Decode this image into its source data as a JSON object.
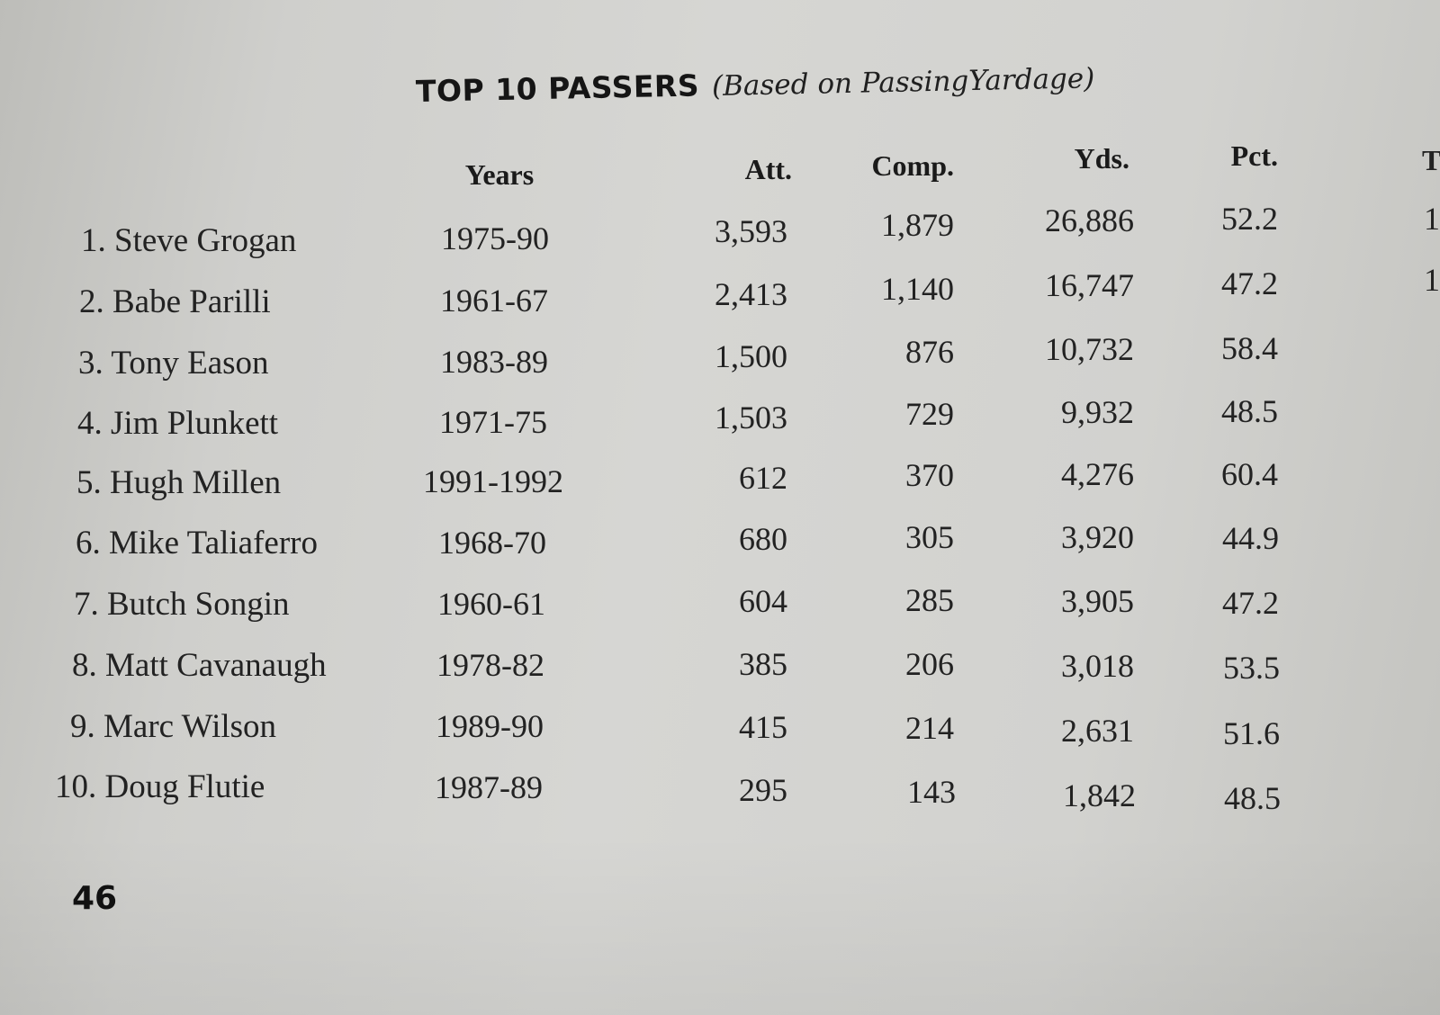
{
  "title": {
    "main": "TOP 10 PASSERS",
    "sub": "(Based on PassingYardage)"
  },
  "columns": {
    "years": "Years",
    "att": "Att.",
    "comp": "Comp.",
    "yds": "Yds.",
    "pct": "Pct.",
    "partial": "T"
  },
  "rows": [
    {
      "player": "1. Steve Grogan",
      "years": "1975-90",
      "att": "3,593",
      "comp": "1,879",
      "yds": "26,886",
      "pct": "52.2",
      "partial": "1"
    },
    {
      "player": "2. Babe Parilli",
      "years": "1961-67",
      "att": "2,413",
      "comp": "1,140",
      "yds": "16,747",
      "pct": "47.2",
      "partial": "1"
    },
    {
      "player": "3. Tony Eason",
      "years": "1983-89",
      "att": "1,500",
      "comp": "876",
      "yds": "10,732",
      "pct": "58.4"
    },
    {
      "player": "4. Jim Plunkett",
      "years": "1971-75",
      "att": "1,503",
      "comp": "729",
      "yds": "9,932",
      "pct": "48.5"
    },
    {
      "player": "5. Hugh Millen",
      "years": "1991-1992",
      "att": "612",
      "comp": "370",
      "yds": "4,276",
      "pct": "60.4"
    },
    {
      "player": "6. Mike Taliaferro",
      "years": "1968-70",
      "att": "680",
      "comp": "305",
      "yds": "3,920",
      "pct": "44.9"
    },
    {
      "player": "7. Butch Songin",
      "years": "1960-61",
      "att": "604",
      "comp": "285",
      "yds": "3,905",
      "pct": "47.2"
    },
    {
      "player": "8. Matt Cavanaugh",
      "years": "1978-82",
      "att": "385",
      "comp": "206",
      "yds": "3,018",
      "pct": "53.5"
    },
    {
      "player": "9. Marc Wilson",
      "years": "1989-90",
      "att": "415",
      "comp": "214",
      "yds": "2,631",
      "pct": "51.6"
    },
    {
      "player": "10. Doug Flutie",
      "years": "1987-89",
      "att": "295",
      "comp": "143",
      "yds": "1,842",
      "pct": "48.5"
    }
  ],
  "page_number": "46"
}
